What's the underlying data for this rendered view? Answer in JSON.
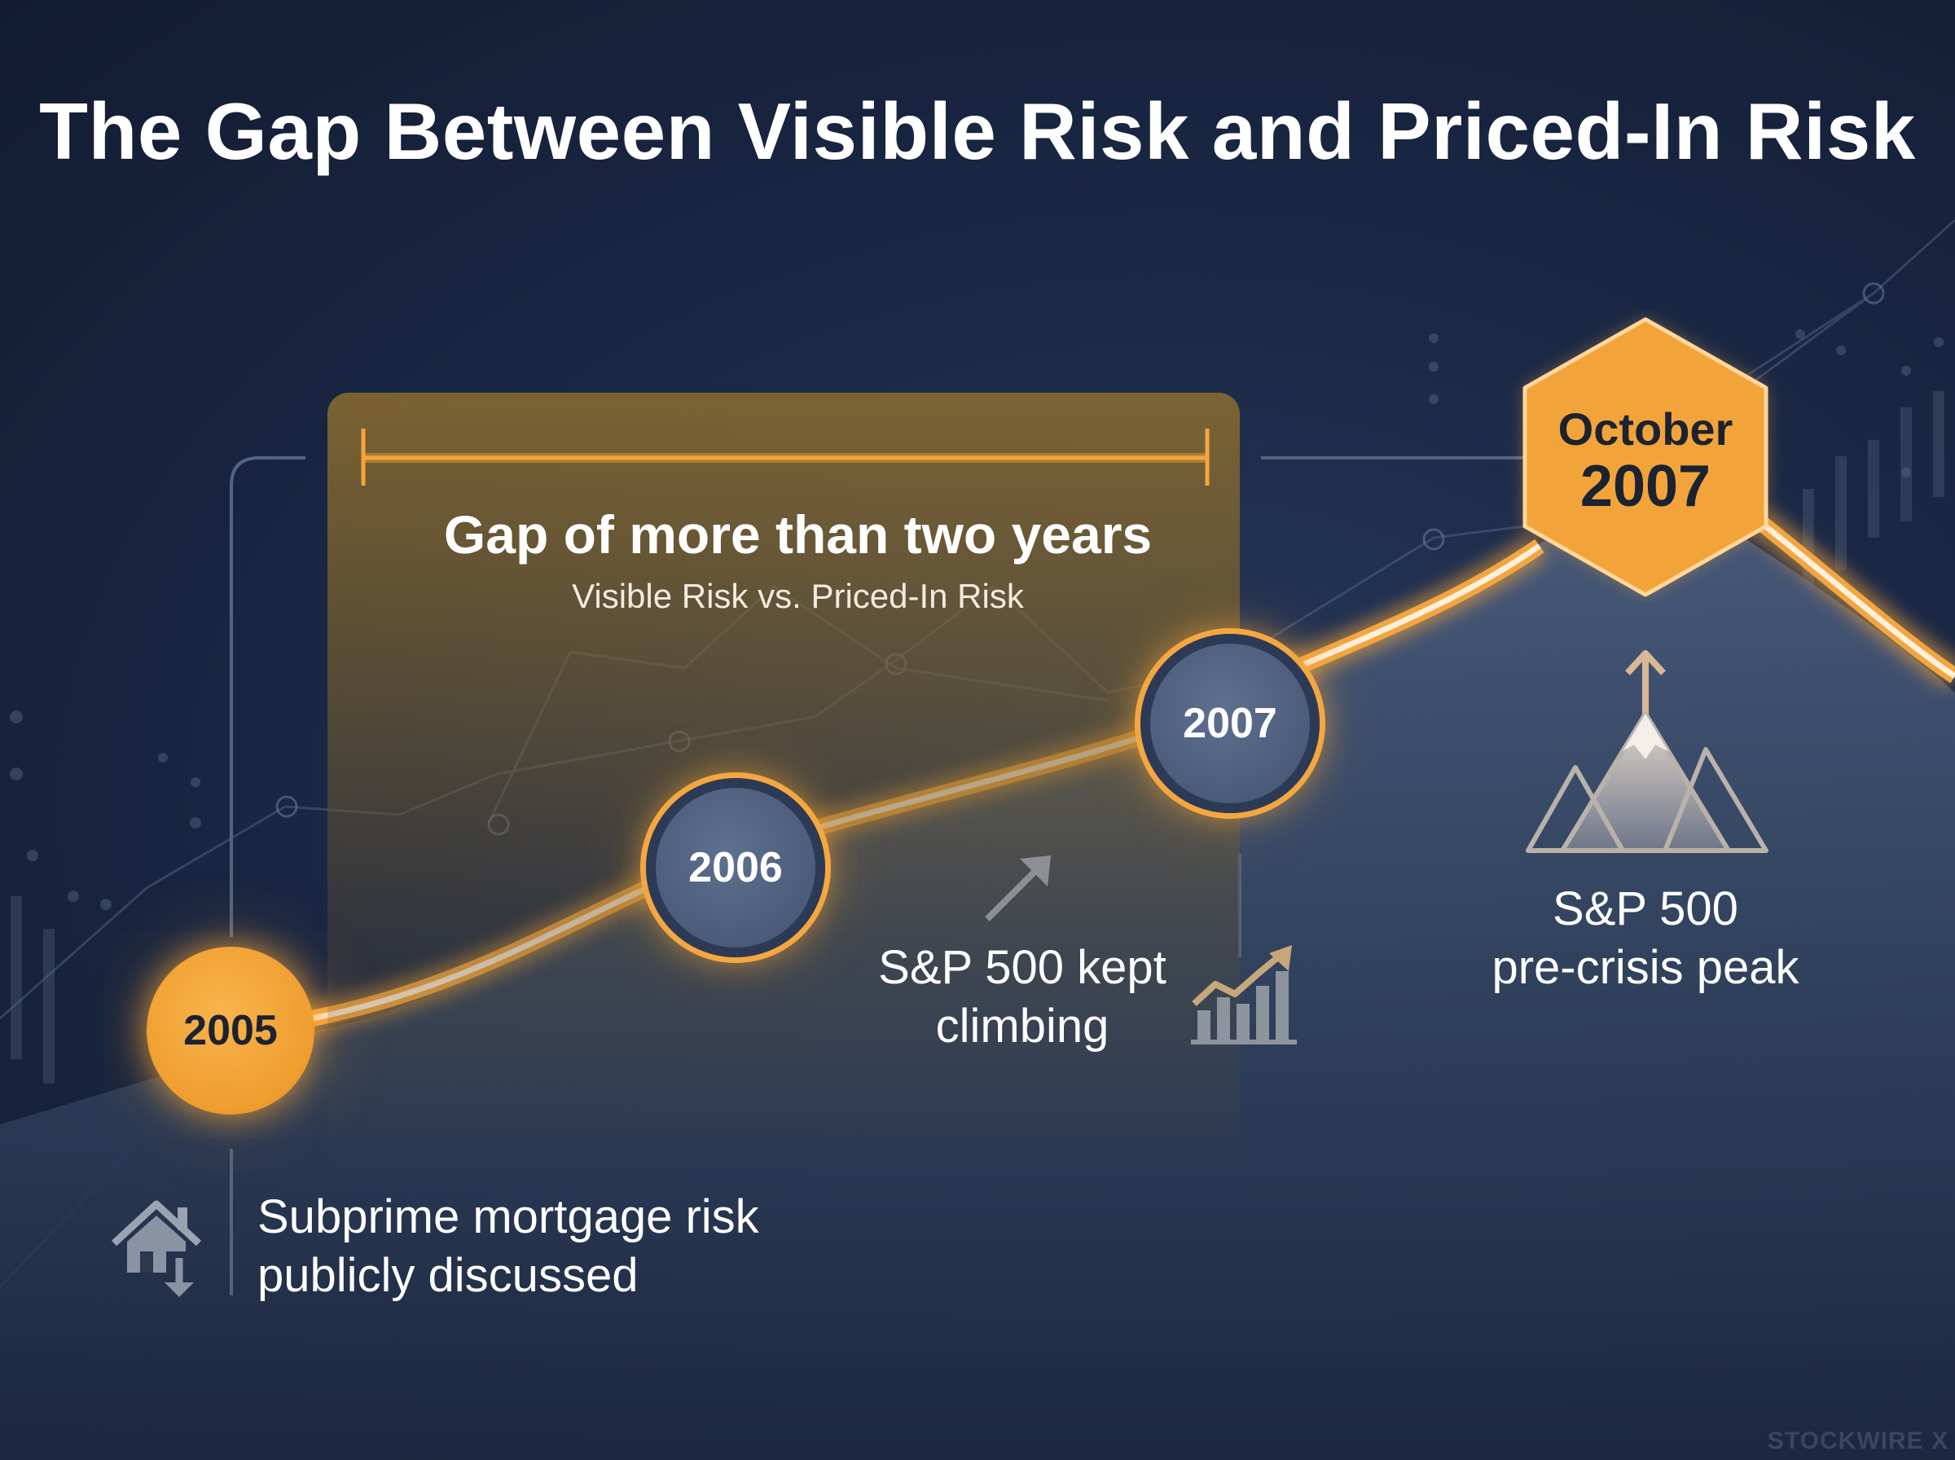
{
  "title": "The Gap Between Visible Risk and Priced-In Risk",
  "gap": {
    "title": "Gap of more than two years",
    "subtitle": "Visible Risk vs. Priced-In Risk"
  },
  "milestones": [
    {
      "year": "2005",
      "caption_lines": [
        "Subprime mortgage risk",
        "publicly discussed"
      ],
      "icon": "house-down-icon"
    },
    {
      "year": "2006"
    },
    {
      "year": "2007",
      "caption_lines": [
        "S&P 500 kept",
        "climbing"
      ],
      "icon": "rising-bars-icon"
    },
    {
      "month": "October",
      "year": "2007",
      "caption_lines": [
        "S&P 500",
        "pre-crisis peak"
      ],
      "icon": "mountain-peak-icon"
    }
  ],
  "logo": "STOCKWIRE X",
  "colors": {
    "accent": "#f2a43a",
    "background": "#16213a",
    "node_fill": "#4b5c7b"
  }
}
